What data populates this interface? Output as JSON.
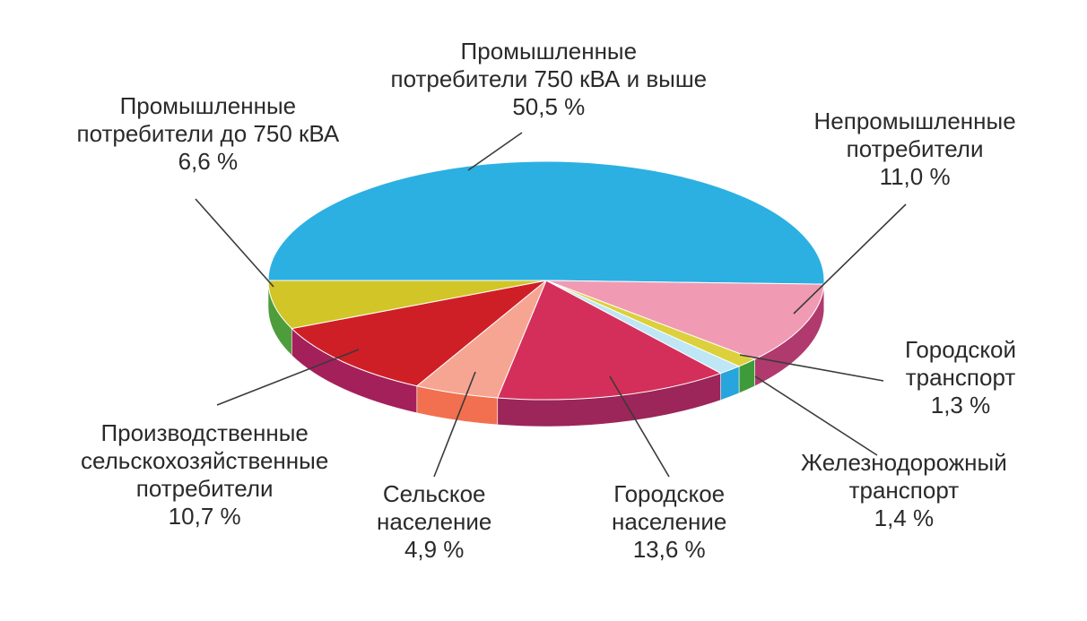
{
  "chart_data": {
    "type": "pie",
    "style": "3d",
    "slices": [
      {
        "label": [
          "Промышленные",
          "потребители 750 кВА и выше"
        ],
        "value_text": "50,5 %",
        "value": 50.5,
        "color": "#2cb0e2",
        "side_color": "#1d8fbd"
      },
      {
        "label": [
          "Непромышленные",
          "потребители"
        ],
        "value_text": "11,0 %",
        "value": 11.0,
        "color": "#f09bb3",
        "side_color": "#b03a6e"
      },
      {
        "label": [
          "Городской",
          "транспорт"
        ],
        "value_text": "1,3 %",
        "value": 1.3,
        "color": "#dcd03c",
        "side_color": "#3f9a3a"
      },
      {
        "label": [
          "Железнодорожный",
          "транспорт"
        ],
        "value_text": "1,4 %",
        "value": 1.4,
        "color": "#bfe6f4",
        "side_color": "#27a5dc"
      },
      {
        "label": [
          "Городское",
          "население"
        ],
        "value_text": "13,6 %",
        "value": 13.6,
        "color": "#d42f5a",
        "side_color": "#9c2559"
      },
      {
        "label": [
          "Сельское",
          "население"
        ],
        "value_text": "4,9 %",
        "value": 4.9,
        "color": "#f6a593",
        "side_color": "#f2704f"
      },
      {
        "label": [
          "Производственные",
          "сельскохозяйственные",
          "потребители"
        ],
        "value_text": "10,7 %",
        "value": 10.7,
        "color": "#cf1f26",
        "side_color": "#a4205a"
      },
      {
        "label": [
          "Промышленные",
          "потребители до 750 кВА"
        ],
        "value_text": "6,6 %",
        "value": 6.6,
        "color": "#d2c527",
        "side_color": "#4d9d3c"
      }
    ]
  }
}
